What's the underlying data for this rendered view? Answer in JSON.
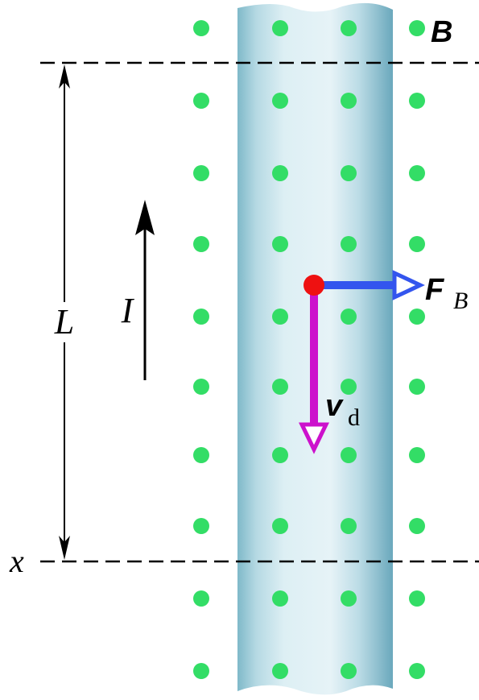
{
  "labels": {
    "field": "B",
    "force": "F",
    "force_subscript": "B",
    "length": "L",
    "current": "I",
    "velocity": "v",
    "velocity_subscript": "d",
    "position": "x"
  }
}
